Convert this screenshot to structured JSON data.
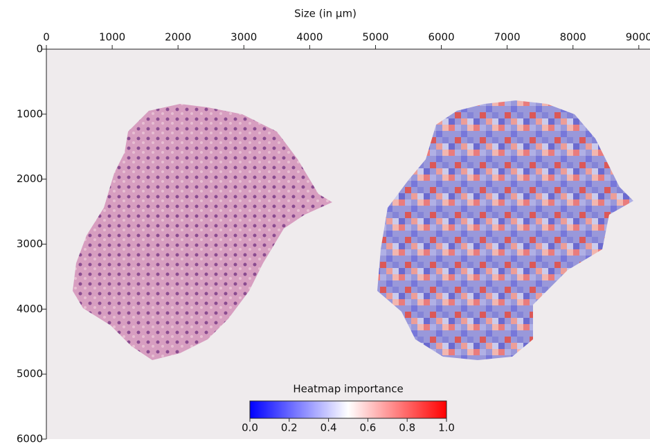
{
  "chart_data": {
    "type": "image",
    "xlabel": "Size (in µm)",
    "xlim": [
      0,
      9170
    ],
    "xticks": [
      0,
      1000,
      2000,
      3000,
      4000,
      5000,
      6000,
      7000,
      8000,
      9000
    ],
    "ylim": [
      0,
      6000
    ],
    "yticks": [
      0,
      1000,
      2000,
      3000,
      4000,
      5000,
      6000
    ],
    "colorbar": {
      "title": "Heatmap importance",
      "range": [
        0,
        1
      ],
      "colors": [
        "#0000ff",
        "#ffffff",
        "#ff0000"
      ],
      "ticks": [
        {
          "value": 0,
          "label": "0.0"
        },
        {
          "value": 0.2,
          "label": "0.2"
        },
        {
          "value": 0.4,
          "label": "0.4"
        },
        {
          "value": 0.6,
          "label": "0.6"
        },
        {
          "value": 0.8,
          "label": "0.8"
        },
        {
          "value": 1,
          "label": "1.0"
        }
      ]
    }
  }
}
